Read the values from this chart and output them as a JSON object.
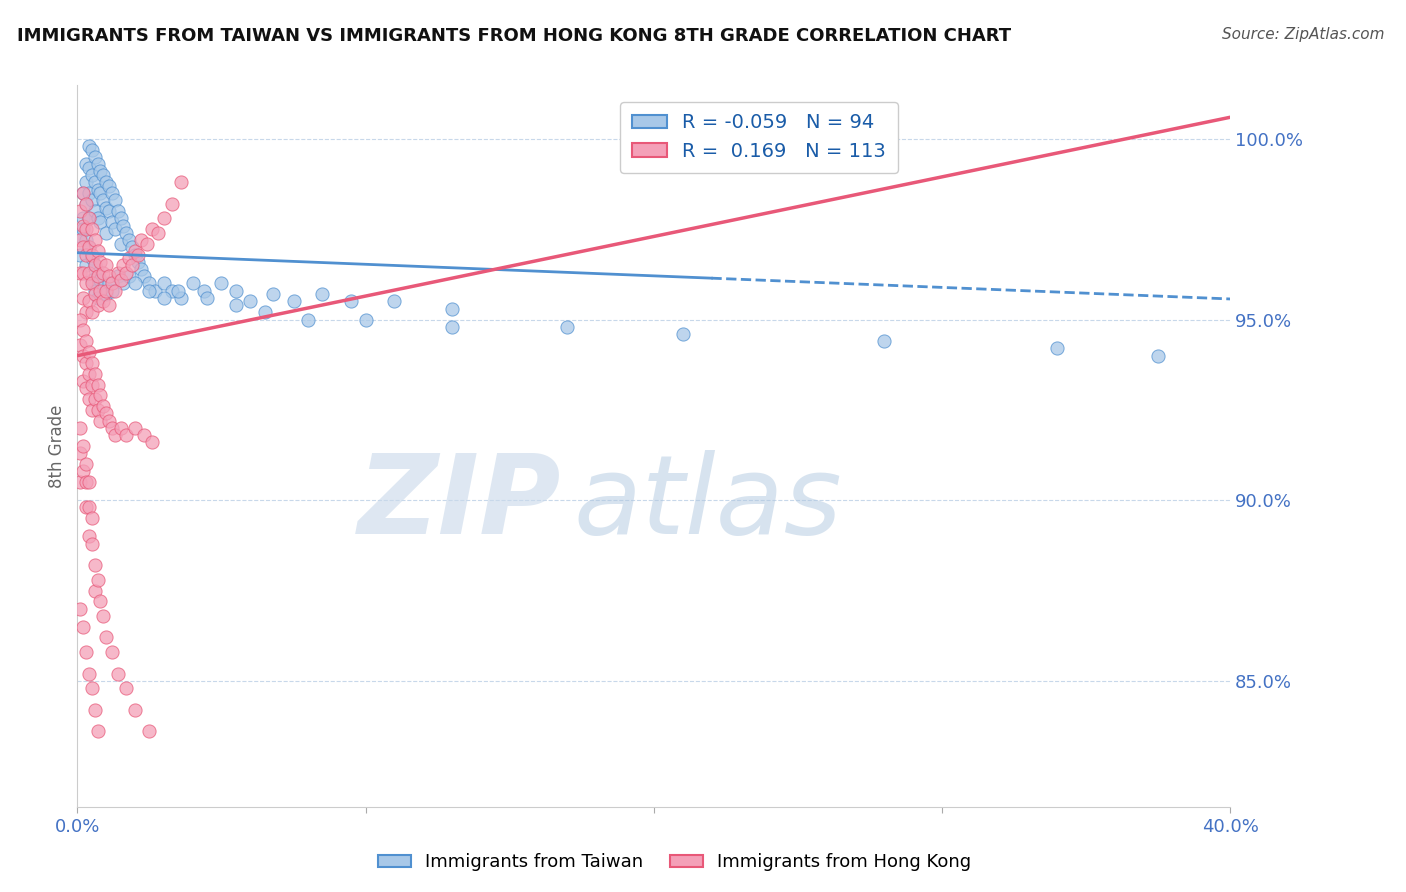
{
  "title": "IMMIGRANTS FROM TAIWAN VS IMMIGRANTS FROM HONG KONG 8TH GRADE CORRELATION CHART",
  "source_text": "Source: ZipAtlas.com",
  "ylabel": "8th Grade",
  "xlim": [
    0.0,
    0.4
  ],
  "ylim": [
    0.815,
    1.015
  ],
  "xticks": [
    0.0,
    0.1,
    0.2,
    0.3,
    0.4
  ],
  "xtick_labels": [
    "0.0%",
    "",
    "",
    "",
    "40.0%"
  ],
  "yticks": [
    0.85,
    0.9,
    0.95,
    1.0
  ],
  "ytick_labels": [
    "85.0%",
    "90.0%",
    "95.0%",
    "100.0%"
  ],
  "taiwan_R": -0.059,
  "taiwan_N": 94,
  "hongkong_R": 0.169,
  "hongkong_N": 113,
  "taiwan_color": "#a8c8e8",
  "hongkong_color": "#f4a0b8",
  "taiwan_line_color": "#5090d0",
  "hongkong_line_color": "#e85878",
  "background_color": "#ffffff",
  "taiwan_x": [
    0.001,
    0.002,
    0.002,
    0.003,
    0.003,
    0.003,
    0.004,
    0.004,
    0.004,
    0.004,
    0.005,
    0.005,
    0.005,
    0.006,
    0.006,
    0.006,
    0.007,
    0.007,
    0.007,
    0.008,
    0.008,
    0.008,
    0.009,
    0.009,
    0.01,
    0.01,
    0.01,
    0.011,
    0.011,
    0.012,
    0.012,
    0.013,
    0.013,
    0.014,
    0.015,
    0.015,
    0.016,
    0.017,
    0.018,
    0.019,
    0.02,
    0.021,
    0.022,
    0.023,
    0.025,
    0.027,
    0.03,
    0.033,
    0.036,
    0.04,
    0.044,
    0.05,
    0.055,
    0.06,
    0.068,
    0.075,
    0.085,
    0.095,
    0.11,
    0.13,
    0.001,
    0.002,
    0.003,
    0.003,
    0.004,
    0.005,
    0.005,
    0.006,
    0.006,
    0.007,
    0.007,
    0.008,
    0.009,
    0.01,
    0.011,
    0.012,
    0.014,
    0.016,
    0.018,
    0.02,
    0.025,
    0.03,
    0.035,
    0.045,
    0.055,
    0.065,
    0.08,
    0.1,
    0.13,
    0.17,
    0.21,
    0.28,
    0.34,
    0.375
  ],
  "taiwan_y": [
    0.973,
    0.985,
    0.978,
    0.993,
    0.988,
    0.982,
    0.998,
    0.992,
    0.985,
    0.978,
    0.997,
    0.99,
    0.983,
    0.995,
    0.988,
    0.98,
    0.993,
    0.986,
    0.978,
    0.991,
    0.985,
    0.977,
    0.99,
    0.983,
    0.988,
    0.981,
    0.974,
    0.987,
    0.98,
    0.985,
    0.977,
    0.983,
    0.975,
    0.98,
    0.978,
    0.971,
    0.976,
    0.974,
    0.972,
    0.97,
    0.968,
    0.966,
    0.964,
    0.962,
    0.96,
    0.958,
    0.96,
    0.958,
    0.956,
    0.96,
    0.958,
    0.96,
    0.958,
    0.955,
    0.957,
    0.955,
    0.957,
    0.955,
    0.955,
    0.953,
    0.968,
    0.975,
    0.972,
    0.965,
    0.97,
    0.967,
    0.961,
    0.965,
    0.958,
    0.963,
    0.956,
    0.961,
    0.959,
    0.957,
    0.96,
    0.958,
    0.962,
    0.96,
    0.962,
    0.96,
    0.958,
    0.956,
    0.958,
    0.956,
    0.954,
    0.952,
    0.95,
    0.95,
    0.948,
    0.948,
    0.946,
    0.944,
    0.942,
    0.94
  ],
  "hongkong_x": [
    0.001,
    0.001,
    0.001,
    0.002,
    0.002,
    0.002,
    0.002,
    0.002,
    0.003,
    0.003,
    0.003,
    0.003,
    0.003,
    0.004,
    0.004,
    0.004,
    0.004,
    0.005,
    0.005,
    0.005,
    0.005,
    0.006,
    0.006,
    0.006,
    0.007,
    0.007,
    0.007,
    0.008,
    0.008,
    0.009,
    0.009,
    0.01,
    0.01,
    0.011,
    0.011,
    0.012,
    0.013,
    0.014,
    0.015,
    0.016,
    0.017,
    0.018,
    0.019,
    0.02,
    0.021,
    0.022,
    0.024,
    0.026,
    0.028,
    0.03,
    0.033,
    0.036,
    0.001,
    0.001,
    0.002,
    0.002,
    0.002,
    0.003,
    0.003,
    0.003,
    0.004,
    0.004,
    0.004,
    0.005,
    0.005,
    0.005,
    0.006,
    0.006,
    0.007,
    0.007,
    0.008,
    0.008,
    0.009,
    0.01,
    0.011,
    0.012,
    0.013,
    0.015,
    0.017,
    0.02,
    0.023,
    0.026,
    0.001,
    0.001,
    0.001,
    0.002,
    0.002,
    0.003,
    0.003,
    0.003,
    0.004,
    0.004,
    0.004,
    0.005,
    0.005,
    0.006,
    0.006,
    0.007,
    0.008,
    0.009,
    0.01,
    0.012,
    0.014,
    0.017,
    0.02,
    0.025,
    0.001,
    0.002,
    0.003,
    0.004,
    0.005,
    0.006,
    0.007
  ],
  "hongkong_y": [
    0.98,
    0.972,
    0.963,
    0.985,
    0.976,
    0.97,
    0.963,
    0.956,
    0.982,
    0.975,
    0.968,
    0.96,
    0.952,
    0.978,
    0.97,
    0.963,
    0.955,
    0.975,
    0.968,
    0.96,
    0.952,
    0.972,
    0.965,
    0.957,
    0.969,
    0.962,
    0.954,
    0.966,
    0.958,
    0.963,
    0.955,
    0.965,
    0.958,
    0.962,
    0.954,
    0.96,
    0.958,
    0.963,
    0.961,
    0.965,
    0.963,
    0.967,
    0.965,
    0.969,
    0.968,
    0.972,
    0.971,
    0.975,
    0.974,
    0.978,
    0.982,
    0.988,
    0.95,
    0.943,
    0.947,
    0.94,
    0.933,
    0.944,
    0.938,
    0.931,
    0.941,
    0.935,
    0.928,
    0.938,
    0.932,
    0.925,
    0.935,
    0.928,
    0.932,
    0.925,
    0.929,
    0.922,
    0.926,
    0.924,
    0.922,
    0.92,
    0.918,
    0.92,
    0.918,
    0.92,
    0.918,
    0.916,
    0.92,
    0.913,
    0.905,
    0.915,
    0.908,
    0.91,
    0.905,
    0.898,
    0.905,
    0.898,
    0.89,
    0.895,
    0.888,
    0.882,
    0.875,
    0.878,
    0.872,
    0.868,
    0.862,
    0.858,
    0.852,
    0.848,
    0.842,
    0.836,
    0.87,
    0.865,
    0.858,
    0.852,
    0.848,
    0.842,
    0.836
  ]
}
